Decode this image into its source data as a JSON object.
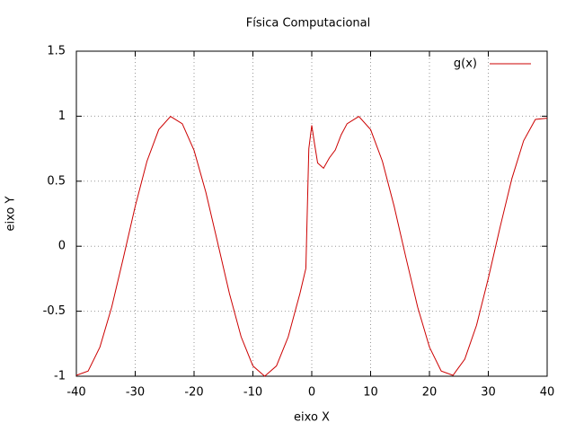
{
  "chart_data": {
    "type": "line",
    "title": "Física Computacional",
    "x_label": "eixo X",
    "y_label": "eixo Y",
    "x": [
      -40,
      -38,
      -36,
      -34,
      -32,
      -30,
      -28,
      -26,
      -24,
      -22,
      -20,
      -18,
      -16,
      -14,
      -12,
      -10,
      -8,
      -6,
      -4,
      -2,
      -1,
      -0.5,
      0,
      0.5,
      1,
      2,
      3,
      4,
      5,
      6,
      8,
      10,
      12,
      14,
      16,
      18,
      20,
      22,
      24,
      26,
      28,
      30,
      32,
      34,
      36,
      38,
      40
    ],
    "series": [
      {
        "name": "g(x)",
        "color": "#cc0000",
        "values": [
          -0.993,
          -0.96,
          -0.776,
          -0.469,
          -0.087,
          0.307,
          0.654,
          0.897,
          0.998,
          0.942,
          0.737,
          0.416,
          0.029,
          -0.362,
          -0.697,
          -0.921,
          -1,
          -0.921,
          -0.697,
          -0.362,
          -0.17,
          0.75,
          0.93,
          0.78,
          0.64,
          0.6,
          0.68,
          0.74,
          0.857,
          0.942,
          0.998,
          0.897,
          0.654,
          0.307,
          -0.087,
          -0.469,
          -0.776,
          -0.96,
          -0.993,
          -0.869,
          -0.608,
          -0.247,
          0.146,
          0.519,
          0.811,
          0.975,
          0.985
        ]
      }
    ],
    "xlim": [
      -40,
      40
    ],
    "ylim": [
      -1,
      1.5
    ],
    "xticks": [
      -40,
      -30,
      -20,
      -10,
      0,
      10,
      20,
      30,
      40
    ],
    "yticks": [
      -1,
      -0.5,
      0,
      0.5,
      1,
      1.5
    ],
    "grid": true,
    "legend": "top-right"
  }
}
